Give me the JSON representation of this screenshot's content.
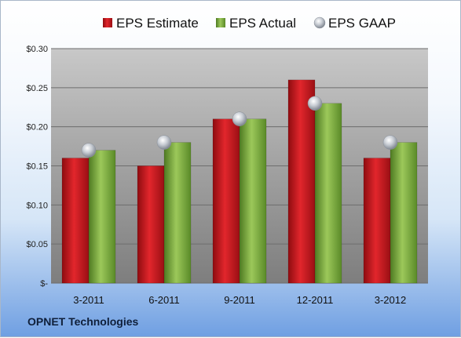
{
  "chart_data": {
    "type": "bar",
    "categories": [
      "3-2011",
      "6-2011",
      "9-2011",
      "12-2011",
      "3-2012"
    ],
    "series": [
      {
        "name": "EPS Estimate",
        "kind": "bar",
        "color": "#c0141b",
        "values": [
          0.16,
          0.15,
          0.21,
          0.26,
          0.16
        ]
      },
      {
        "name": "EPS Actual",
        "kind": "bar",
        "color": "#78a83a",
        "values": [
          0.17,
          0.18,
          0.21,
          0.23,
          0.18
        ]
      },
      {
        "name": "EPS GAAP",
        "kind": "marker",
        "color": "#b9bec6",
        "values": [
          0.17,
          0.18,
          0.21,
          0.23,
          0.18
        ]
      }
    ],
    "ylim": [
      0,
      0.3
    ],
    "y_ticks": [
      {
        "value": 0.3,
        "label": "$0.30"
      },
      {
        "value": 0.25,
        "label": "$0.25"
      },
      {
        "value": 0.2,
        "label": "$0.20"
      },
      {
        "value": 0.15,
        "label": "$0.15"
      },
      {
        "value": 0.1,
        "label": "$0.10"
      },
      {
        "value": 0.05,
        "label": "$0.05"
      },
      {
        "value": 0.0,
        "label": "$-"
      }
    ],
    "grid": true,
    "legend_position": "top",
    "footer": "OPNET Technologies"
  }
}
